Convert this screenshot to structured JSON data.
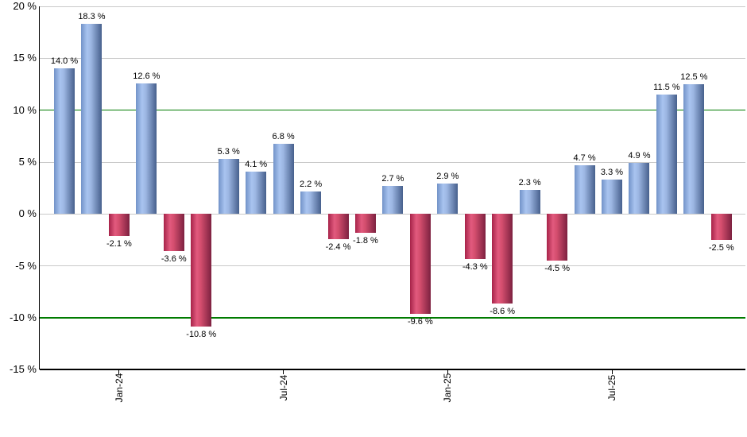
{
  "chart_data": {
    "type": "bar",
    "title": "",
    "ylim": [
      -15,
      20
    ],
    "values": [
      14.0,
      18.3,
      -2.1,
      12.6,
      -3.6,
      -10.8,
      5.3,
      4.1,
      6.8,
      2.2,
      -2.4,
      -1.8,
      2.7,
      -9.6,
      2.9,
      -4.3,
      -8.6,
      2.3,
      -4.5,
      4.7,
      3.3,
      4.9,
      11.5,
      12.5,
      -2.5
    ],
    "bar_labels": [
      "14.0 %",
      "18.3 %",
      "-2.1 %",
      "12.6 %",
      "-3.6 %",
      "-10.8 %",
      "5.3 %",
      "4.1 %",
      "6.8 %",
      "2.2 %",
      "-2.4 %",
      "-1.8 %",
      "2.7 %",
      "-9.6 %",
      "2.9 %",
      "-4.3 %",
      "-8.6 %",
      "2.3 %",
      "-4.5 %",
      "4.7 %",
      "3.3 %",
      "4.9 %",
      "11.5 %",
      "12.5 %",
      "-2.5 %"
    ],
    "x_ticks": [
      {
        "label": "Jan-24",
        "bar_index": 2
      },
      {
        "label": "Jul-24",
        "bar_index": 8
      },
      {
        "label": "Jan-25",
        "bar_index": 14
      },
      {
        "label": "Jul-25",
        "bar_index": 20
      }
    ],
    "y_ticks": [
      {
        "label": "20 %",
        "value": 20
      },
      {
        "label": "15 %",
        "value": 15
      },
      {
        "label": "10 %",
        "value": 10,
        "green": true
      },
      {
        "label": "5 %",
        "value": 5
      },
      {
        "label": "0 %",
        "value": 0
      },
      {
        "label": "-5 %",
        "value": -5
      },
      {
        "label": "-10 %",
        "value": -10,
        "green": true
      },
      {
        "label": "-15 %",
        "value": -15,
        "axis": true
      }
    ],
    "legend": null,
    "grid": true,
    "colors": {
      "positive_bar": {
        "edge_left": "#7293c8",
        "highlight": "#a9c4f0",
        "mid": "#9cb6e2",
        "edge_right": "#47608d"
      },
      "negative_bar": {
        "edge_left": "#a62349",
        "highlight": "#e25a7e",
        "mid": "#d44e6e",
        "edge_right": "#7d2140"
      },
      "green_line": "#007b00",
      "gridline": "#c9c9c9",
      "axis": "#000000",
      "text": "#000000",
      "background": "#ffffff"
    }
  }
}
